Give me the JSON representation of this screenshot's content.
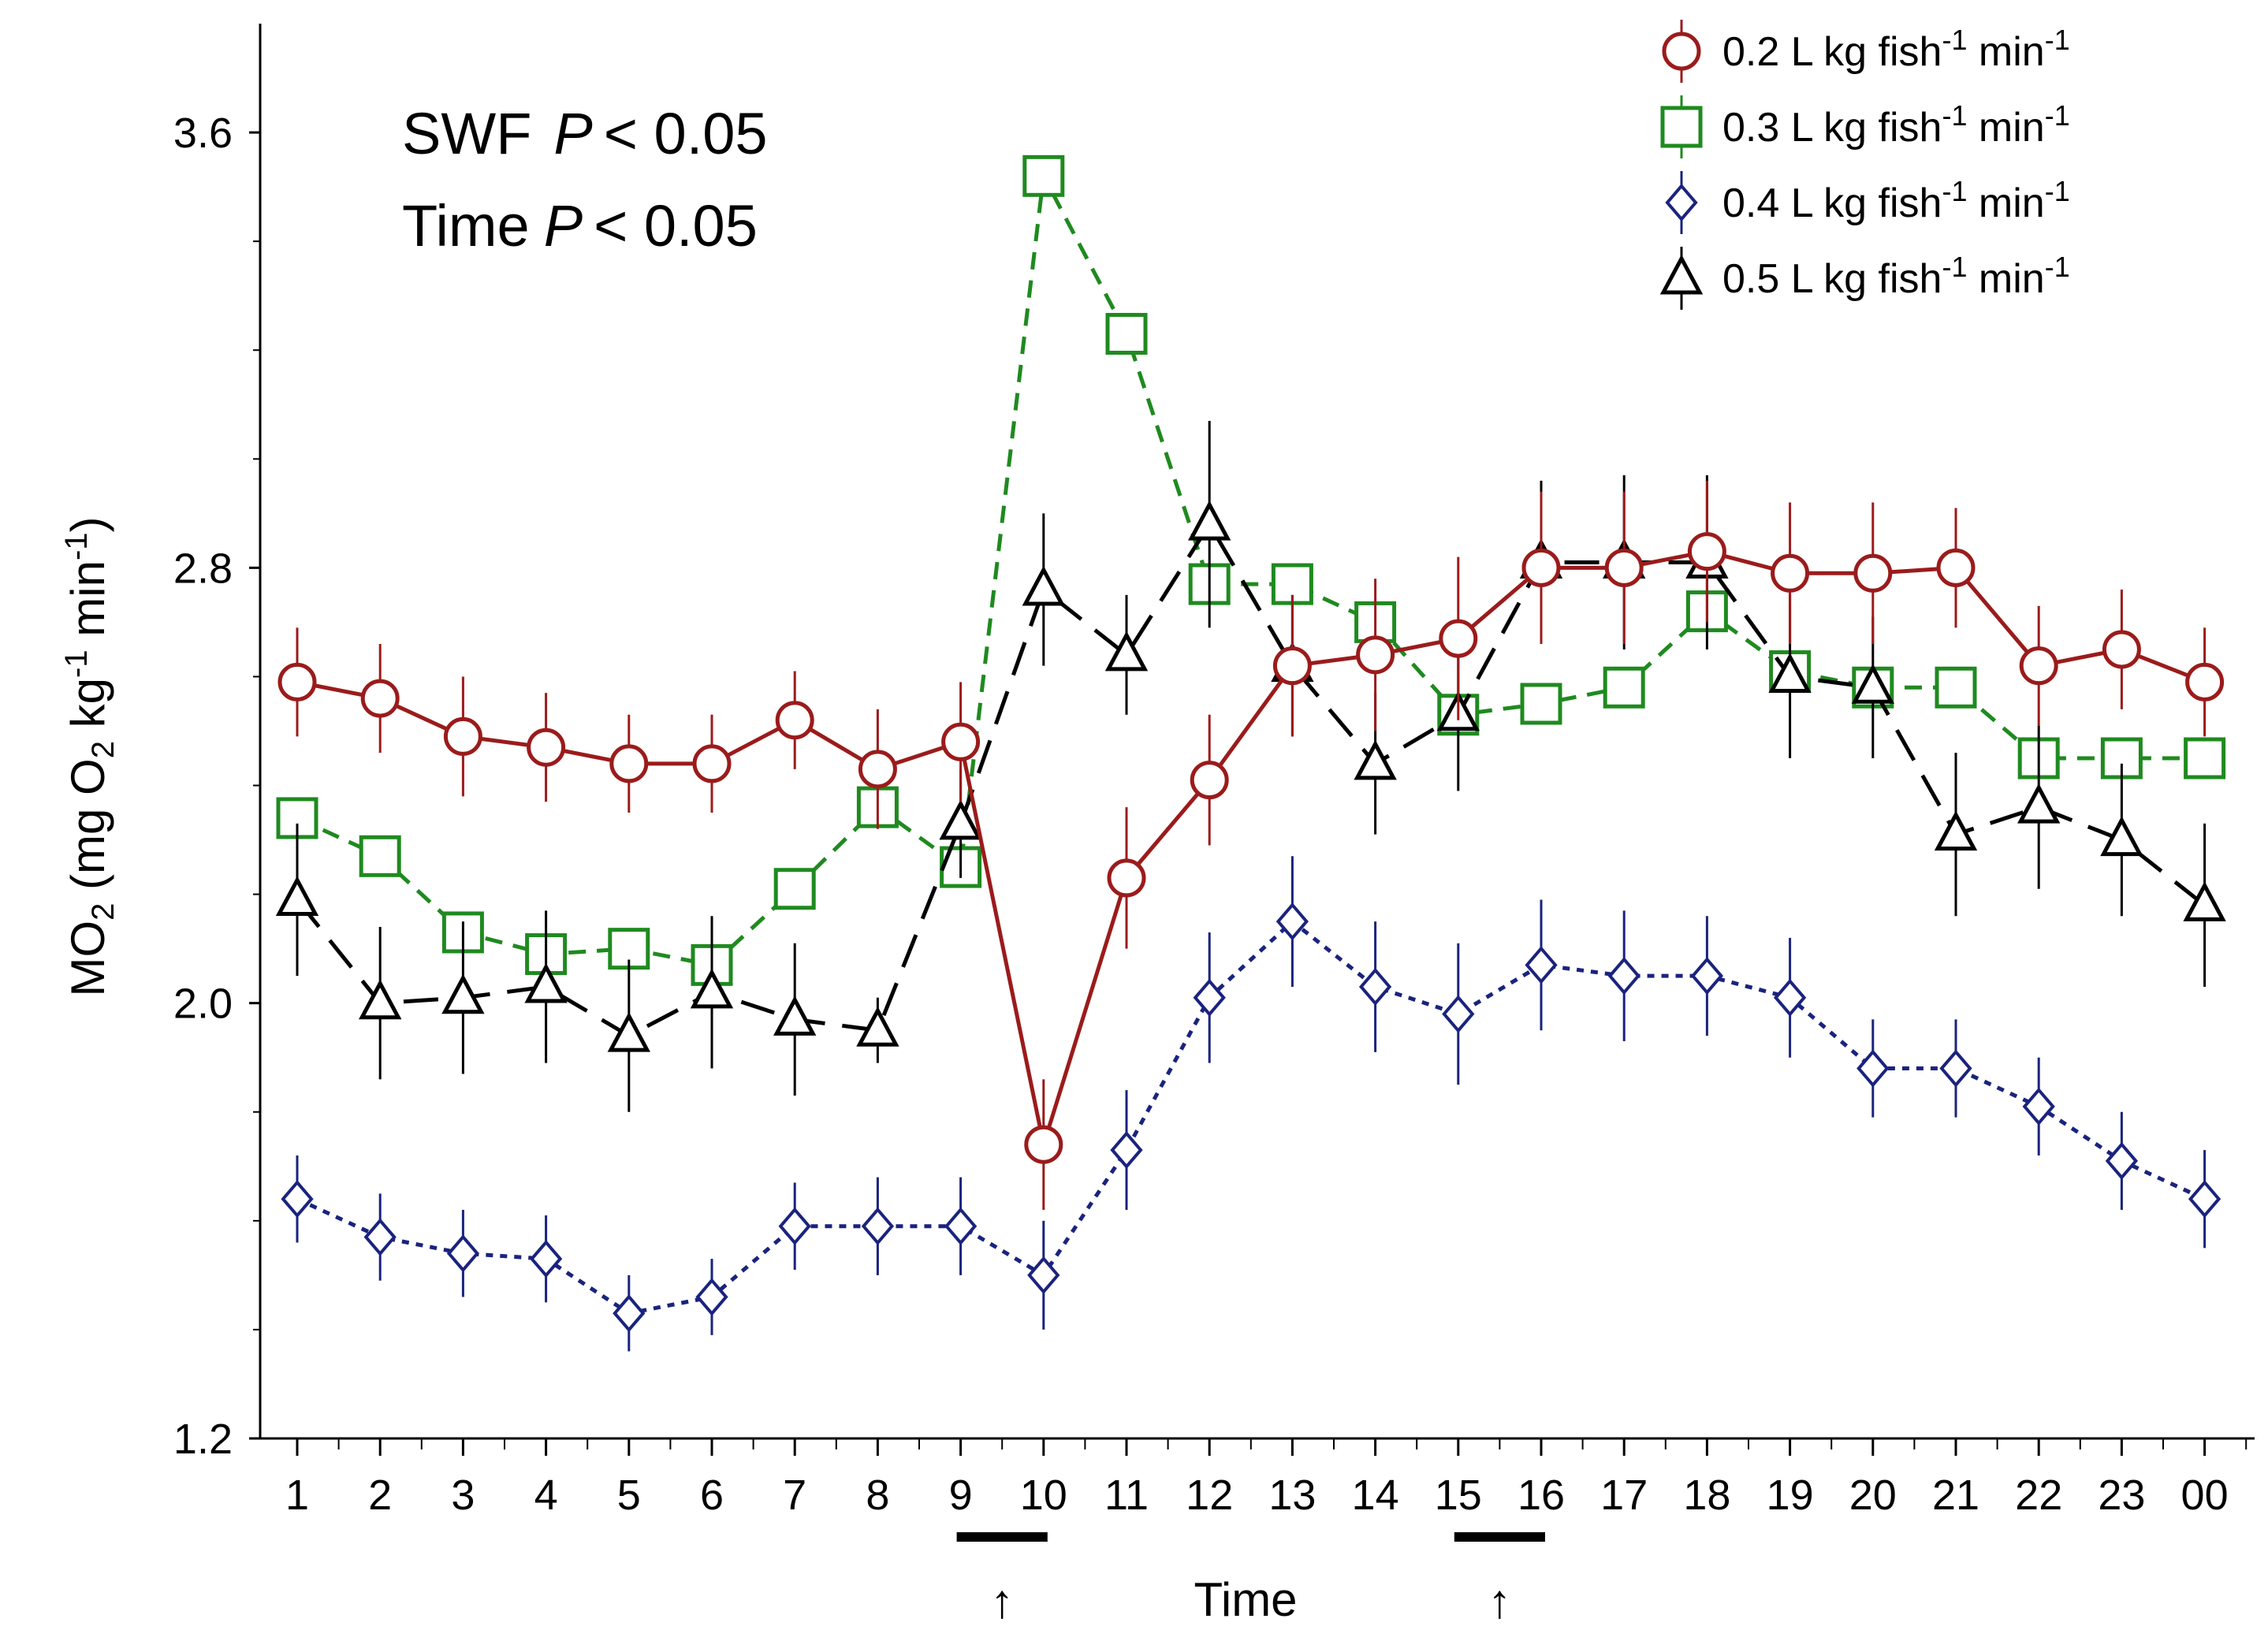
{
  "chart_data": {
    "type": "line",
    "title": "",
    "xlabel": "Time",
    "ylabel": "MO2 (mg O2 kg-1 min-1)",
    "ylabel_parts": {
      "main": "MO",
      "sub1": "2",
      "mid1": " (mg O",
      "sub2": "2",
      "mid2": " kg",
      "sup1": "-1",
      "mid3": "  min",
      "sup2": "-1",
      "end": ")"
    },
    "ylim": [
      1.2,
      3.8
    ],
    "yticks": [
      {
        "value": 1.2,
        "label": "1.2"
      },
      {
        "value": 2.0,
        "label": "2.0"
      },
      {
        "value": 2.8,
        "label": "2.8"
      },
      {
        "value": 3.6,
        "label": "3.6"
      }
    ],
    "categories": [
      "1",
      "2",
      "3",
      "4",
      "5",
      "6",
      "7",
      "8",
      "9",
      "10",
      "11",
      "12",
      "13",
      "14",
      "15",
      "16",
      "17",
      "18",
      "19",
      "20",
      "21",
      "22",
      "23",
      "00"
    ],
    "annotations": {
      "stat_lines": [
        {
          "label": "SWF",
          "p_symbol": "P",
          "op": "< 0.05"
        },
        {
          "label": "Time",
          "p_symbol": "P",
          "op": "< 0.05"
        }
      ],
      "feeding_markers": [
        {
          "between": [
            "9",
            "10"
          ],
          "symbol": "↑"
        },
        {
          "between": [
            "15",
            "16"
          ],
          "symbol": "↑"
        }
      ]
    },
    "series": [
      {
        "name": "0.2 L kg fish-1 min-1",
        "legend": {
          "a": "0.2 L kg fish",
          "sup1": "-1",
          "b": " min",
          "sup2": "-1"
        },
        "color": "#9b1b1b",
        "marker": "circle",
        "dash": "none",
        "values": [
          2.59,
          2.56,
          2.49,
          2.47,
          2.44,
          2.44,
          2.52,
          2.43,
          2.48,
          1.74,
          2.23,
          2.41,
          2.62,
          2.64,
          2.67,
          2.8,
          2.8,
          2.83,
          2.79,
          2.79,
          2.8,
          2.62,
          2.65,
          2.59
        ],
        "errors": [
          0.1,
          0.1,
          0.11,
          0.1,
          0.09,
          0.09,
          0.09,
          0.11,
          0.11,
          0.12,
          0.13,
          0.12,
          0.13,
          0.14,
          0.15,
          0.14,
          0.14,
          0.13,
          0.13,
          0.13,
          0.11,
          0.11,
          0.11,
          0.1
        ]
      },
      {
        "name": "0.3 L kg fish-1 min-1",
        "legend": {
          "a": "0.3 L kg fish",
          "sup1": "-1",
          "b": " min",
          "sup2": "-1"
        },
        "color": "#1f8a1f",
        "marker": "square",
        "dash": "medium",
        "values": [
          2.34,
          2.27,
          2.13,
          2.09,
          2.1,
          2.07,
          2.21,
          2.36,
          2.25,
          3.52,
          3.23,
          2.77,
          2.77,
          2.7,
          2.53,
          2.55,
          2.58,
          2.72,
          2.61,
          2.58,
          2.58,
          2.45,
          2.45,
          2.45
        ]
      },
      {
        "name": "0.4 L kg fish-1 min-1",
        "legend": {
          "a": "0.4 L kg fish",
          "sup1": "-1",
          "b": " min",
          "sup2": "-1"
        },
        "color": "#1a237e",
        "marker": "diamond",
        "dash": "dotted",
        "values": [
          1.64,
          1.57,
          1.54,
          1.53,
          1.43,
          1.46,
          1.59,
          1.59,
          1.59,
          1.5,
          1.73,
          2.01,
          2.15,
          2.03,
          1.98,
          2.07,
          2.05,
          2.05,
          2.01,
          1.88,
          1.88,
          1.81,
          1.71,
          1.64
        ],
        "errors": [
          0.08,
          0.08,
          0.08,
          0.08,
          0.07,
          0.07,
          0.08,
          0.09,
          0.09,
          0.1,
          0.11,
          0.12,
          0.12,
          0.12,
          0.13,
          0.12,
          0.12,
          0.11,
          0.11,
          0.09,
          0.09,
          0.09,
          0.09,
          0.09
        ]
      },
      {
        "name": "0.5 L kg fish-1 min-1",
        "legend": {
          "a": "0.5 L kg fish",
          "sup1": "-1",
          "b": " min",
          "sup2": "-1"
        },
        "color": "#000000",
        "marker": "triangle",
        "dash": "long",
        "values": [
          2.19,
          2.0,
          2.01,
          2.03,
          1.94,
          2.02,
          1.97,
          1.95,
          2.33,
          2.76,
          2.64,
          2.88,
          2.62,
          2.44,
          2.53,
          2.81,
          2.81,
          2.81,
          2.6,
          2.58,
          2.31,
          2.36,
          2.3,
          2.18
        ],
        "errors": [
          0.14,
          0.14,
          0.14,
          0.14,
          0.14,
          0.14,
          0.14,
          0.06,
          0.1,
          0.14,
          0.11,
          0.19,
          0.13,
          0.13,
          0.14,
          0.15,
          0.16,
          0.16,
          0.15,
          0.13,
          0.15,
          0.15,
          0.14,
          0.15
        ]
      }
    ]
  }
}
